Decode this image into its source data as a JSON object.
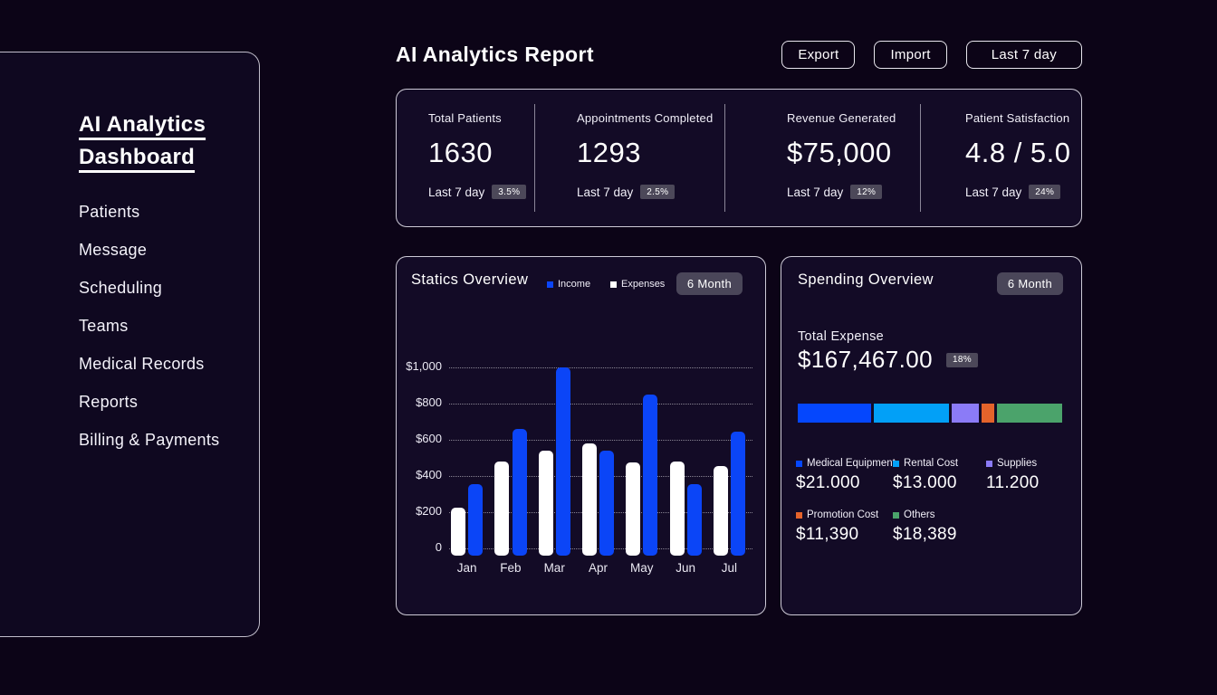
{
  "theme": {
    "background": "#0c0417",
    "card_background": "#130b26",
    "border": "#eeecf6",
    "badge_background": "#4a4659",
    "accent_blue": "#0b45f7"
  },
  "sidebar": {
    "title_line1": "AI Analytics",
    "title_line2": "Dashboard",
    "items": [
      {
        "label": "Patients"
      },
      {
        "label": "Message"
      },
      {
        "label": "Scheduling"
      },
      {
        "label": "Teams"
      },
      {
        "label": "Medical Records"
      },
      {
        "label": "Reports"
      },
      {
        "label": "Billing & Payments"
      }
    ]
  },
  "header": {
    "title": "AI  Analytics Report",
    "buttons": [
      {
        "label": "Export"
      },
      {
        "label": "Import"
      },
      {
        "label": "Last 7 day"
      }
    ]
  },
  "stats": [
    {
      "label": "Total Patients",
      "value": "1630",
      "period": "Last 7 day",
      "delta": "3.5%"
    },
    {
      "label": "Appointments Completed",
      "value": "1293",
      "period": "Last 7 day",
      "delta": "2.5%"
    },
    {
      "label": "Revenue Generated",
      "value": "$75,000",
      "period": "Last 7 day",
      "delta": "12%"
    },
    {
      "label": "Patient Satisfaction",
      "value": "4.8 / 5.0",
      "period": "Last 7 day",
      "delta": "24%"
    }
  ],
  "statics_overview": {
    "title": "Statics Overview",
    "badge": "6 Month",
    "legend": [
      {
        "label": "Income",
        "color": "#0b45f7"
      },
      {
        "label": "Expenses",
        "color": "#ffffff"
      }
    ]
  },
  "chart_data": {
    "type": "bar",
    "title": "Statics Overview",
    "categories": [
      "Jan",
      "Feb",
      "Mar",
      "Apr",
      "May",
      "Jun",
      "Jul"
    ],
    "series": [
      {
        "name": "Expenses",
        "color": "#ffffff",
        "values": [
          225,
          480,
          540,
          580,
          475,
          480,
          455
        ]
      },
      {
        "name": "Income",
        "color": "#0b45f7",
        "values": [
          355,
          660,
          1000,
          540,
          850,
          355,
          645
        ]
      }
    ],
    "ylabel": "",
    "xlabel": "",
    "ylim": [
      0,
      1000
    ],
    "yticks": [
      "$1,000",
      "$800",
      "$600",
      "$400",
      "$200",
      "0"
    ],
    "grid": true,
    "legend_position": "top"
  },
  "spending": {
    "title": "Spending Overview",
    "badge": "6 Month",
    "total_label": "Total Expense",
    "total_value": "$167,467.00",
    "total_delta": "18%",
    "segments": [
      {
        "label": "Medical Equipment",
        "value": "$21.000",
        "color": "#0547fd",
        "width_pct": 27.7
      },
      {
        "label": "Rental Cost",
        "value": "$13.000",
        "color": "#02a0f7",
        "width_pct": 28.7
      },
      {
        "label": "Supplies",
        "value": "11.200",
        "color": "#8b7bf7",
        "width_pct": 10.3
      },
      {
        "label": "Promotion Cost",
        "value": "$11,390",
        "color": "#e4632b",
        "width_pct": 4.7
      },
      {
        "label": "Others",
        "value": "$18,389",
        "color": "#4ba36b",
        "width_pct": 24.9
      }
    ]
  }
}
